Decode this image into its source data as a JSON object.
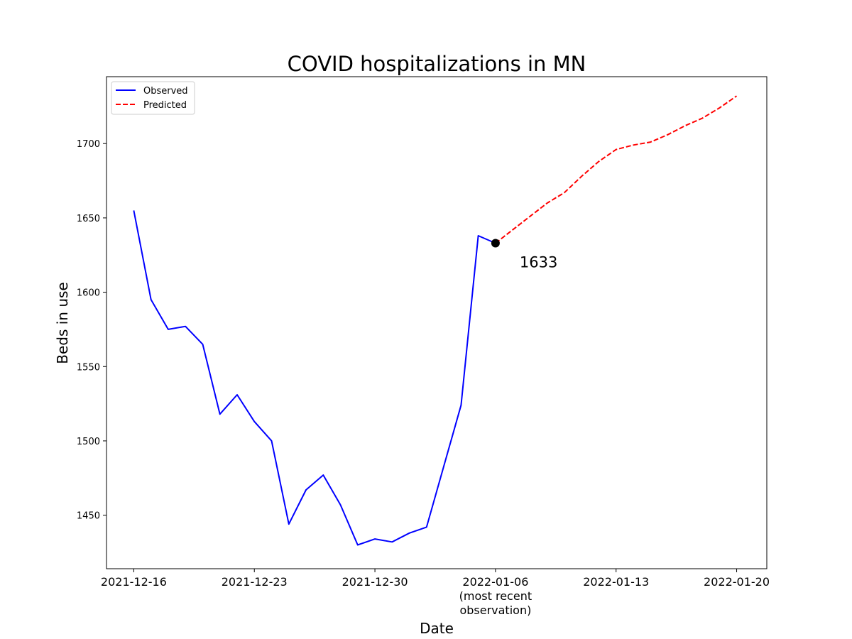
{
  "chart_data": {
    "type": "line",
    "title": "COVID hospitalizations in MN",
    "xlabel": "Date",
    "ylabel": "Beds in use",
    "xlim": [
      "2021-12-14 10:00",
      "2022-01-21 18:00"
    ],
    "ylim": [
      1414,
      1745
    ],
    "x_ticks": [
      "2021-12-16",
      "2021-12-23",
      "2021-12-30",
      "2022-01-06",
      "2022-01-13",
      "2022-01-20"
    ],
    "x_tick_labels": [
      "2021-12-16",
      "2021-12-23",
      "2021-12-30",
      "2022-01-06\n(most recent\nobservation)",
      "2022-01-13",
      "2022-01-20"
    ],
    "y_ticks": [
      1450,
      1500,
      1550,
      1600,
      1650,
      1700
    ],
    "grid": false,
    "legend_position": "top-left",
    "series": [
      {
        "name": "Observed",
        "color": "#0000ff",
        "style": "solid",
        "x": [
          "2021-12-16",
          "2021-12-17",
          "2021-12-18",
          "2021-12-19",
          "2021-12-20",
          "2021-12-21",
          "2021-12-22",
          "2021-12-23",
          "2021-12-24",
          "2021-12-25",
          "2021-12-26",
          "2021-12-27",
          "2021-12-28",
          "2021-12-29",
          "2021-12-30",
          "2021-12-31",
          "2022-01-01",
          "2022-01-02",
          "2022-01-03",
          "2022-01-04",
          "2022-01-05",
          "2022-01-06"
        ],
        "y": [
          1655,
          1595,
          1575,
          1577,
          1565,
          1518,
          1531,
          1513,
          1500,
          1444,
          1467,
          1477,
          1457,
          1430,
          1434,
          1432,
          1438,
          1442,
          1483,
          1524,
          1638,
          1633
        ]
      },
      {
        "name": "Predicted",
        "color": "#ff0000",
        "style": "dashed",
        "x": [
          "2022-01-06",
          "2022-01-07",
          "2022-01-08",
          "2022-01-09",
          "2022-01-10",
          "2022-01-11",
          "2022-01-12",
          "2022-01-13",
          "2022-01-14",
          "2022-01-15",
          "2022-01-16",
          "2022-01-17",
          "2022-01-18",
          "2022-01-19",
          "2022-01-20"
        ],
        "y": [
          1633,
          1642,
          1651,
          1660,
          1667,
          1678,
          1688,
          1696,
          1699,
          1701,
          1706,
          1712,
          1717,
          1724,
          1732
        ]
      }
    ],
    "annotation": {
      "x": "2022-01-06",
      "y": 1633,
      "text": "1633",
      "marker_color": "#000000"
    }
  }
}
